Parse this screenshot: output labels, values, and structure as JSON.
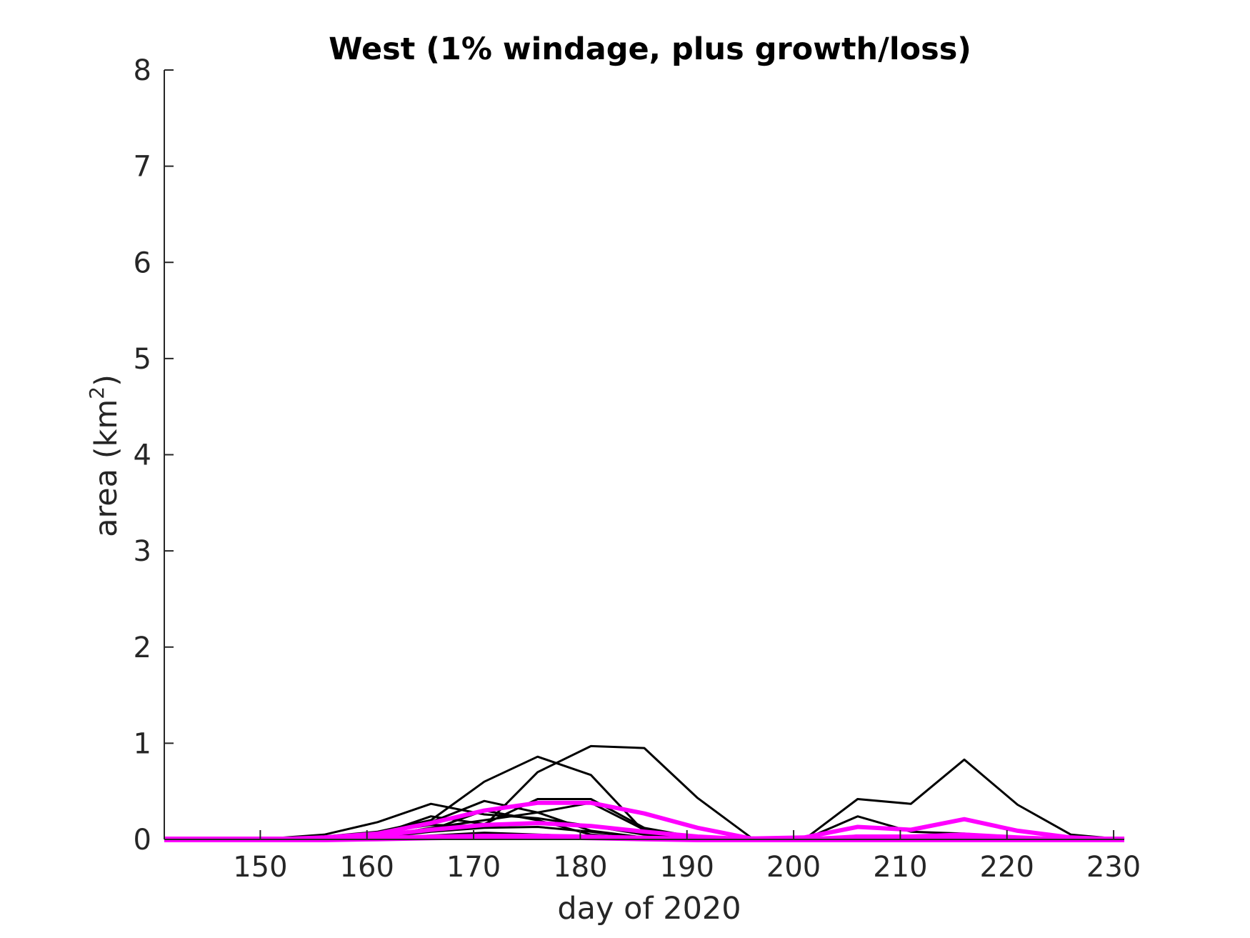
{
  "chart_data": {
    "type": "line",
    "title": "West (1% windage, plus growth/loss)",
    "xlabel": "day of 2020",
    "ylabel_main": "area (km",
    "ylabel_sup": "2",
    "ylabel_close": ")",
    "xlim": [
      141,
      231
    ],
    "ylim": [
      0,
      8
    ],
    "xticks": [
      "150",
      "160",
      "170",
      "180",
      "190",
      "200",
      "210",
      "220",
      "230"
    ],
    "yticks": [
      "0",
      "1",
      "2",
      "3",
      "4",
      "5",
      "6",
      "7",
      "8"
    ],
    "grid": false,
    "x": [
      141,
      146,
      151,
      156,
      161,
      166,
      171,
      176,
      181,
      186,
      191,
      196,
      201,
      206,
      211,
      216,
      221,
      226,
      231
    ],
    "series": [
      {
        "color": "#000000",
        "width": 3,
        "values": [
          0,
          0,
          0.01,
          0.05,
          0.18,
          0.37,
          0.26,
          0.22,
          0.14,
          0.05,
          0.02,
          0,
          0,
          0.42,
          0.37,
          0.83,
          0.36,
          0.05,
          0
        ]
      },
      {
        "color": "#000000",
        "width": 3,
        "values": [
          0,
          0,
          0,
          0.03,
          0.08,
          0.2,
          0.6,
          0.86,
          0.67,
          0.08,
          0.01,
          0,
          0,
          0.24,
          0.08,
          0.06,
          0.02,
          0.01,
          0
        ]
      },
      {
        "color": "#000000",
        "width": 3,
        "values": [
          0,
          0,
          0,
          0.02,
          0.07,
          0.15,
          0.14,
          0.7,
          0.97,
          0.95,
          0.43,
          0.02,
          0,
          0.04,
          0.03,
          0.05,
          0.02,
          0,
          0
        ]
      },
      {
        "color": "#000000",
        "width": 3,
        "values": [
          0,
          0,
          0,
          0.01,
          0.06,
          0.18,
          0.4,
          0.28,
          0.09,
          0.02,
          0,
          0,
          0,
          0.02,
          0.02,
          0.02,
          0.01,
          0,
          0
        ]
      },
      {
        "color": "#000000",
        "width": 3,
        "values": [
          0,
          0,
          0,
          0.01,
          0.05,
          0.24,
          0.16,
          0.42,
          0.42,
          0.12,
          0.02,
          0,
          0,
          0.01,
          0.01,
          0.01,
          0,
          0,
          0
        ]
      },
      {
        "color": "#000000",
        "width": 3,
        "values": [
          0,
          0,
          0,
          0.01,
          0.04,
          0.1,
          0.3,
          0.2,
          0.05,
          0.01,
          0,
          0,
          0,
          0,
          0,
          0,
          0,
          0,
          0
        ]
      },
      {
        "color": "#000000",
        "width": 3,
        "values": [
          0,
          0,
          0,
          0,
          0.03,
          0.12,
          0.2,
          0.28,
          0.38,
          0.1,
          0.01,
          0,
          0,
          0,
          0,
          0,
          0,
          0,
          0
        ]
      },
      {
        "color": "#000000",
        "width": 3,
        "values": [
          0,
          0,
          0,
          0,
          0.02,
          0.08,
          0.12,
          0.13,
          0.08,
          0.02,
          0,
          0,
          0,
          0,
          0,
          0,
          0,
          0,
          0
        ]
      },
      {
        "color": "#000000",
        "width": 3,
        "values": [
          0,
          0,
          0,
          0,
          0.01,
          0.04,
          0.07,
          0.05,
          0.03,
          0.01,
          0,
          0,
          0,
          0,
          0,
          0,
          0,
          0,
          0
        ]
      },
      {
        "color": "#000000",
        "width": 3,
        "values": [
          0,
          0,
          0,
          0,
          0.01,
          0.02,
          0.05,
          0.04,
          0.02,
          0,
          0,
          0,
          0,
          0,
          0,
          0,
          0,
          0,
          0
        ]
      },
      {
        "color": "#ff00ff",
        "width": 6,
        "values": [
          0,
          0,
          0,
          0.02,
          0.06,
          0.17,
          0.3,
          0.38,
          0.38,
          0.27,
          0.12,
          0.01,
          0.02,
          0.13,
          0.1,
          0.21,
          0.09,
          0.02,
          0
        ]
      },
      {
        "color": "#ff00ff",
        "width": 6,
        "values": [
          0,
          0,
          0,
          0.01,
          0.04,
          0.1,
          0.15,
          0.17,
          0.14,
          0.08,
          0.03,
          0,
          0,
          0.03,
          0.03,
          0.05,
          0.02,
          0,
          0
        ]
      },
      {
        "color": "#ff00ff",
        "width": 8,
        "values": [
          0,
          0,
          0,
          0,
          0.01,
          0.02,
          0.03,
          0.03,
          0.02,
          0.01,
          0,
          0,
          0,
          0,
          0,
          0,
          0,
          0,
          0
        ]
      }
    ]
  }
}
